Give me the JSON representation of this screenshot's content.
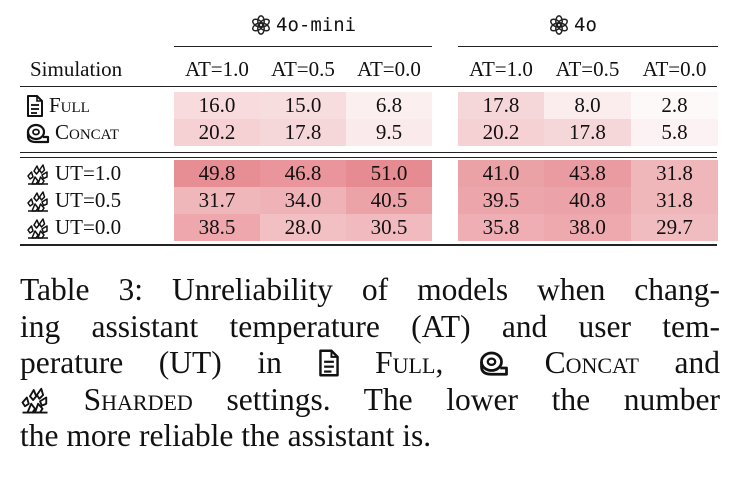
{
  "table": {
    "models": [
      {
        "label": "4o-mini",
        "icon": "openai-logo-icon"
      },
      {
        "label": "4o",
        "icon": "openai-logo-icon"
      }
    ],
    "simulation_header": "Simulation",
    "at_columns": [
      "AT=1.0",
      "AT=0.5",
      "AT=0.0"
    ],
    "rows": [
      {
        "icon": "document-icon",
        "label": "Full",
        "values": [
          "16.0",
          "15.0",
          "6.8",
          "17.8",
          "8.0",
          "2.8"
        ],
        "shade": [
          16.0,
          15.0,
          6.8,
          17.8,
          8.0,
          2.8
        ]
      },
      {
        "icon": "tape-roll-icon",
        "label": "Concat",
        "values": [
          "20.2",
          "17.8",
          "9.5",
          "20.2",
          "17.8",
          "5.8"
        ],
        "shade": [
          20.2,
          17.8,
          9.5,
          20.2,
          17.8,
          5.8
        ]
      },
      {
        "icon": "shards-icon",
        "label": "UT=1.0",
        "values": [
          "49.8",
          "46.8",
          "51.0",
          "41.0",
          "43.8",
          "31.8"
        ],
        "shade": [
          49.8,
          46.8,
          51.0,
          41.0,
          43.8,
          31.8
        ]
      },
      {
        "icon": "shards-icon",
        "label": "UT=0.5",
        "values": [
          "31.7",
          "34.0",
          "40.5",
          "39.5",
          "40.8",
          "31.8"
        ],
        "shade": [
          31.7,
          34.0,
          40.5,
          39.5,
          40.8,
          31.8
        ]
      },
      {
        "icon": "shards-icon",
        "label": "UT=0.0",
        "values": [
          "38.5",
          "28.0",
          "30.5",
          "35.8",
          "38.0",
          "29.7"
        ],
        "shade": [
          38.5,
          28.0,
          30.5,
          35.8,
          38.0,
          29.7
        ]
      }
    ],
    "shade_color": "#e06c75"
  },
  "caption": {
    "line1": "Table 3: Unreliability of models when chang-",
    "line2": "ing assistant temperature (AT) and user tem-",
    "line3_a": "perature (UT) in",
    "full": "Full",
    "concat": "Concat",
    "line3_b": "and",
    "sharded": "Sharded",
    "line4_b": "settings. The lower the number",
    "line5": "the more reliable the assistant is."
  }
}
